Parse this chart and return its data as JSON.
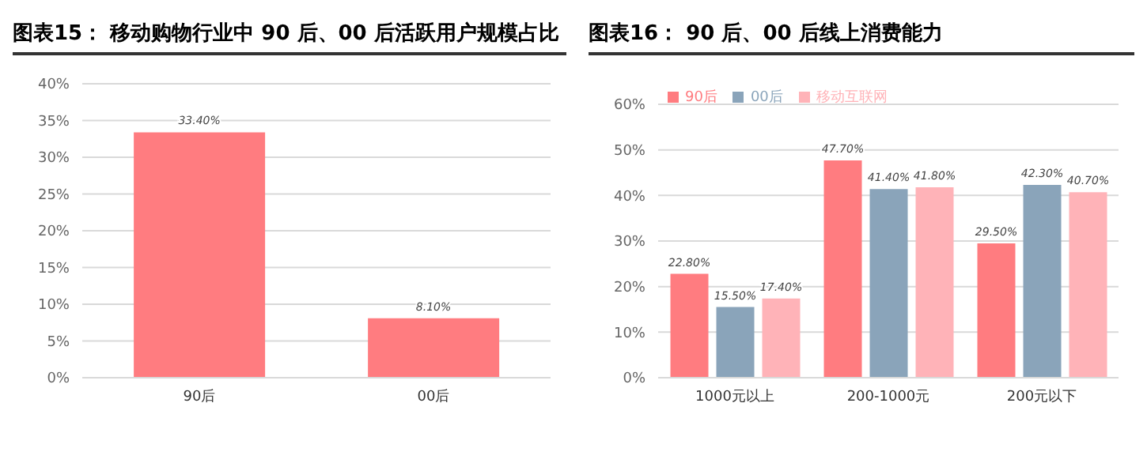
{
  "chart_data": [
    {
      "type": "bar",
      "title": "图表15：  移动购物行业中 90 后、00 后活跃用户规模占比",
      "categories": [
        "90后",
        "00后"
      ],
      "series": [
        {
          "color": "#ff7c80",
          "values": [
            33.4,
            8.1
          ],
          "value_labels": [
            "33.40%",
            "8.10%"
          ]
        }
      ],
      "ylim": [
        0,
        40
      ],
      "yticks": [
        {
          "value": 0,
          "label": "0%"
        },
        {
          "value": 5,
          "label": "5%"
        },
        {
          "value": 10,
          "label": "10%"
        },
        {
          "value": 15,
          "label": "15%"
        },
        {
          "value": 20,
          "label": "20%"
        },
        {
          "value": 25,
          "label": "25%"
        },
        {
          "value": 30,
          "label": "30%"
        },
        {
          "value": 35,
          "label": "35%"
        },
        {
          "value": 40,
          "label": "40%"
        }
      ],
      "grid": "y",
      "legend": false
    },
    {
      "type": "bar",
      "title": "图表16：  90 后、00 后线上消费能力",
      "categories": [
        "1000元以上",
        "200-1000元",
        "200元以下"
      ],
      "series": [
        {
          "name": "90后",
          "color": "#ff7c80",
          "values": [
            22.8,
            47.7,
            29.5
          ],
          "value_labels": [
            "22.80%",
            "47.70%",
            "29.50%"
          ]
        },
        {
          "name": "00后",
          "color": "#8aa4ba",
          "values": [
            15.5,
            41.4,
            42.3
          ],
          "value_labels": [
            "15.50%",
            "41.40%",
            "42.30%"
          ]
        },
        {
          "name": "移动互联网",
          "color": "#ffb3b8",
          "values": [
            17.4,
            41.8,
            40.7
          ],
          "value_labels": [
            "17.40%",
            "41.80%",
            "40.70%"
          ]
        }
      ],
      "ylim": [
        0,
        60
      ],
      "yticks": [
        {
          "value": 0,
          "label": "0%"
        },
        {
          "value": 10,
          "label": "10%"
        },
        {
          "value": 20,
          "label": "20%"
        },
        {
          "value": 30,
          "label": "30%"
        },
        {
          "value": 40,
          "label": "40%"
        },
        {
          "value": 50,
          "label": "50%"
        },
        {
          "value": 60,
          "label": "60%"
        }
      ],
      "grid": "y",
      "legend": "top left"
    }
  ]
}
